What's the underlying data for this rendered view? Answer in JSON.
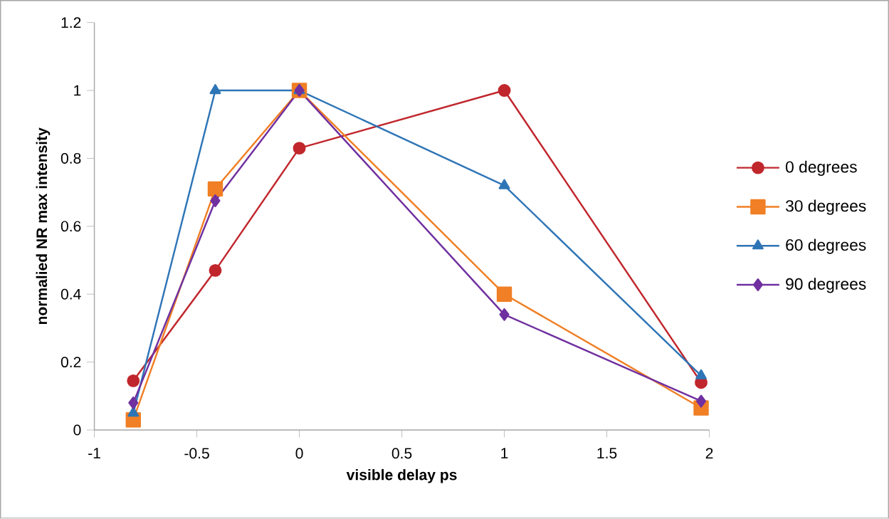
{
  "chart_data": {
    "type": "line",
    "xlabel": "visible delay ps",
    "ylabel": "normalied NR  max intensity",
    "x": [
      -0.81,
      -0.41,
      0,
      1,
      1.96
    ],
    "xlim": [
      -1,
      2
    ],
    "xticks": [
      -1,
      -0.5,
      0,
      0.5,
      1,
      1.5,
      2
    ],
    "ylim": [
      0,
      1.2
    ],
    "yticks": [
      0,
      0.2,
      0.4,
      0.6,
      0.8,
      1,
      1.2
    ],
    "grid": false,
    "legend": "right",
    "line_style": "solid",
    "series": [
      {
        "name": "0 degrees",
        "color": "#c0272d",
        "marker": "circle",
        "values": [
          0.145,
          0.47,
          0.83,
          1.0,
          0.14
        ]
      },
      {
        "name": "30 degrees",
        "color": "#f07f25",
        "marker": "square",
        "values": [
          0.03,
          0.71,
          1.0,
          0.4,
          0.065
        ]
      },
      {
        "name": "60 degrees",
        "color": "#2e75b6",
        "marker": "triangle",
        "values": [
          0.05,
          1.0,
          1.0,
          0.72,
          0.16
        ]
      },
      {
        "name": "90 degrees",
        "color": "#7030a0",
        "marker": "diamond",
        "values": [
          0.08,
          0.675,
          1.0,
          0.34,
          0.085
        ]
      }
    ]
  }
}
